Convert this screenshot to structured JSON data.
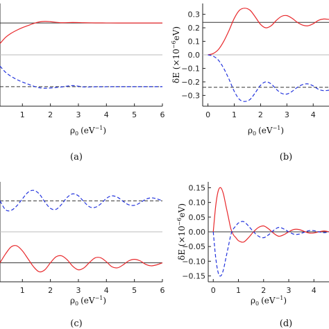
{
  "chart_data": [
    {
      "panel": "a",
      "type": "line",
      "caption": "(a)",
      "xlabel_main": "ρ",
      "xlabel_sub": "0",
      "xlabel_unit": "(eV",
      "xlabel_exp": "−1",
      "xlabel_close": ")",
      "xlim": [
        0.2,
        6.0
      ],
      "xticks": [
        1,
        2,
        3,
        4,
        5,
        6
      ],
      "ylim": [
        -1.0,
        1.0
      ],
      "reference_lines": [
        {
          "y": 0.62,
          "style": "solid",
          "color": "#333333"
        },
        {
          "y": 0.0,
          "style": "solid",
          "color": "#bbbbbb"
        },
        {
          "y": -0.62,
          "style": "dashed",
          "color": "#333333"
        }
      ],
      "series": [
        {
          "style": "solid",
          "color": "#e8282b",
          "x": [
            0.2,
            0.4,
            0.6,
            0.8,
            1.0,
            1.2,
            1.4,
            1.6,
            1.8,
            2.0,
            2.4,
            2.8,
            3.2,
            3.6,
            4.0,
            4.4,
            4.8,
            5.2,
            5.6,
            6.0
          ],
          "y": [
            0.22,
            0.34,
            0.42,
            0.48,
            0.53,
            0.57,
            0.61,
            0.64,
            0.65,
            0.645,
            0.625,
            0.63,
            0.625,
            0.622,
            0.621,
            0.62,
            0.62,
            0.62,
            0.62,
            0.62
          ]
        },
        {
          "style": "dashed",
          "color": "#2233dd",
          "x": [
            0.2,
            0.4,
            0.6,
            0.8,
            1.0,
            1.2,
            1.4,
            1.6,
            1.8,
            2.0,
            2.4,
            2.8,
            3.2,
            3.6,
            4.0,
            4.4,
            4.8,
            5.2,
            5.6,
            6.0
          ],
          "y": [
            -0.22,
            -0.34,
            -0.42,
            -0.48,
            -0.53,
            -0.57,
            -0.61,
            -0.64,
            -0.65,
            -0.645,
            -0.625,
            -0.6,
            -0.625,
            -0.622,
            -0.621,
            -0.62,
            -0.62,
            -0.62,
            -0.62,
            -0.62
          ]
        }
      ]
    },
    {
      "panel": "b",
      "type": "line",
      "caption": "(b)",
      "xlabel_main": "ρ",
      "xlabel_sub": "0",
      "xlabel_unit": "(eV",
      "xlabel_exp": "−1",
      "xlabel_close": ")",
      "ylabel_main": "δE (×10",
      "ylabel_exp": "−6",
      "ylabel_unit": "eV)",
      "xlim": [
        -0.2,
        4.6
      ],
      "xticks": [
        0,
        1,
        2,
        3,
        4
      ],
      "ylim": [
        -0.38,
        0.38
      ],
      "yticks": [
        -0.3,
        -0.2,
        -0.1,
        0.0,
        0.1,
        0.2,
        0.3
      ],
      "yticklabels": [
        "−0.3",
        "−0.2",
        "−0.1",
        "0.0",
        "0.1",
        "0.2",
        "0.3"
      ],
      "reference_lines": [
        {
          "y": 0.24,
          "style": "solid",
          "color": "#333333"
        },
        {
          "y": 0.0,
          "style": "solid",
          "color": "#bbbbbb"
        },
        {
          "y": -0.24,
          "style": "dashed",
          "color": "#333333"
        }
      ],
      "series": [
        {
          "style": "solid",
          "color": "#e8282b",
          "x": [
            0.0,
            0.2,
            0.4,
            0.6,
            0.8,
            1.0,
            1.2,
            1.4,
            1.6,
            1.8,
            2.0,
            2.2,
            2.4,
            2.6,
            2.8,
            3.0,
            3.2,
            3.4,
            3.6,
            3.8,
            4.0,
            4.2,
            4.4,
            4.6
          ],
          "y": [
            0.0,
            0.01,
            0.04,
            0.1,
            0.18,
            0.27,
            0.33,
            0.345,
            0.33,
            0.28,
            0.225,
            0.2,
            0.215,
            0.255,
            0.285,
            0.29,
            0.27,
            0.24,
            0.22,
            0.215,
            0.23,
            0.255,
            0.265,
            0.262
          ]
        },
        {
          "style": "dashed",
          "color": "#2233dd",
          "x": [
            0.0,
            0.2,
            0.4,
            0.6,
            0.8,
            1.0,
            1.2,
            1.4,
            1.6,
            1.8,
            2.0,
            2.2,
            2.4,
            2.6,
            2.8,
            3.0,
            3.2,
            3.4,
            3.6,
            3.8,
            4.0,
            4.2,
            4.4,
            4.6
          ],
          "y": [
            0.0,
            -0.01,
            -0.04,
            -0.1,
            -0.18,
            -0.27,
            -0.33,
            -0.345,
            -0.33,
            -0.28,
            -0.225,
            -0.2,
            -0.215,
            -0.255,
            -0.285,
            -0.29,
            -0.27,
            -0.24,
            -0.22,
            -0.215,
            -0.23,
            -0.255,
            -0.265,
            -0.262
          ]
        }
      ]
    },
    {
      "panel": "c",
      "type": "line",
      "caption": "(c)",
      "xlabel_main": "ρ",
      "xlabel_sub": "0",
      "xlabel_unit": "(eV",
      "xlabel_exp": "−1",
      "xlabel_close": ")",
      "xlim": [
        0.2,
        6.0
      ],
      "xticks": [
        1,
        2,
        3,
        4,
        5,
        6
      ],
      "ylim": [
        -1.0,
        1.0
      ],
      "reference_lines": [
        {
          "y": 0.62,
          "style": "dashed",
          "color": "#333333"
        },
        {
          "y": 0.0,
          "style": "solid",
          "color": "#bbbbbb"
        },
        {
          "y": -0.62,
          "style": "solid",
          "color": "#333333"
        }
      ],
      "series": [
        {
          "style": "dashed",
          "color": "#2233dd",
          "x": [
            0.2,
            0.4,
            0.6,
            0.8,
            1.0,
            1.2,
            1.4,
            1.6,
            1.8,
            2.0,
            2.2,
            2.4,
            2.6,
            2.8,
            3.0,
            3.2,
            3.4,
            3.6,
            3.8,
            4.0,
            4.2,
            4.4,
            4.6,
            4.8,
            5.0,
            5.2,
            5.4,
            5.6,
            5.8,
            6.0
          ],
          "y": [
            0.62,
            0.44,
            0.43,
            0.52,
            0.66,
            0.79,
            0.83,
            0.76,
            0.6,
            0.47,
            0.45,
            0.55,
            0.69,
            0.76,
            0.72,
            0.6,
            0.5,
            0.49,
            0.56,
            0.67,
            0.72,
            0.69,
            0.61,
            0.54,
            0.53,
            0.58,
            0.65,
            0.68,
            0.66,
            0.62
          ]
        },
        {
          "style": "solid",
          "color": "#e8282b",
          "x": [
            0.2,
            0.4,
            0.6,
            0.8,
            1.0,
            1.2,
            1.4,
            1.6,
            1.8,
            2.0,
            2.2,
            2.4,
            2.6,
            2.8,
            3.0,
            3.2,
            3.4,
            3.6,
            3.8,
            4.0,
            4.2,
            4.4,
            4.6,
            4.8,
            5.0,
            5.2,
            5.4,
            5.6,
            5.8,
            6.0
          ],
          "y": [
            -0.62,
            -0.44,
            -0.3,
            -0.28,
            -0.38,
            -0.54,
            -0.7,
            -0.8,
            -0.76,
            -0.62,
            -0.5,
            -0.48,
            -0.56,
            -0.69,
            -0.76,
            -0.72,
            -0.61,
            -0.52,
            -0.52,
            -0.6,
            -0.7,
            -0.72,
            -0.66,
            -0.58,
            -0.55,
            -0.58,
            -0.65,
            -0.68,
            -0.66,
            -0.62
          ]
        }
      ]
    },
    {
      "panel": "d",
      "type": "line",
      "caption": "(d)",
      "xlabel_main": "ρ",
      "xlabel_sub": "0",
      "xlabel_unit": "(eV",
      "xlabel_exp": "−1",
      "xlabel_close": ")",
      "ylabel_main": "δE (×10",
      "ylabel_exp": "−6",
      "ylabel_unit": "eV)",
      "xlim": [
        -0.2,
        4.6
      ],
      "xticks": [
        0,
        1,
        2,
        3,
        4
      ],
      "ylim": [
        -0.17,
        0.17
      ],
      "yticks": [
        -0.15,
        -0.1,
        -0.05,
        0.0,
        0.05,
        0.1,
        0.15
      ],
      "yticklabels": [
        "−0.15",
        "−0.10",
        "−0.05",
        "0.00",
        "0.05",
        "0.10",
        "0.15"
      ],
      "reference_lines": [
        {
          "y": 0.0,
          "style": "solid",
          "color": "#333333"
        }
      ],
      "series": [
        {
          "style": "solid",
          "color": "#e8282b",
          "x": [
            0.0,
            0.1,
            0.2,
            0.3,
            0.4,
            0.5,
            0.6,
            0.7,
            0.8,
            0.9,
            1.0,
            1.2,
            1.4,
            1.6,
            1.8,
            2.0,
            2.2,
            2.4,
            2.6,
            2.8,
            3.0,
            3.2,
            3.4,
            3.6,
            3.8,
            4.0,
            4.2,
            4.4,
            4.6
          ],
          "y": [
            0.0,
            0.09,
            0.14,
            0.15,
            0.13,
            0.09,
            0.05,
            0.01,
            -0.01,
            -0.02,
            -0.03,
            -0.035,
            -0.02,
            0.0,
            0.015,
            0.02,
            0.01,
            -0.005,
            -0.015,
            -0.01,
            0.0,
            0.008,
            0.008,
            0.002,
            -0.004,
            -0.004,
            0.0,
            0.003,
            0.0
          ]
        },
        {
          "style": "dashed",
          "color": "#2233dd",
          "x": [
            0.0,
            0.1,
            0.2,
            0.3,
            0.4,
            0.5,
            0.6,
            0.7,
            0.8,
            0.9,
            1.0,
            1.2,
            1.4,
            1.6,
            1.8,
            2.0,
            2.2,
            2.4,
            2.6,
            2.8,
            3.0,
            3.2,
            3.4,
            3.6,
            3.8,
            4.0,
            4.2,
            4.4,
            4.6
          ],
          "y": [
            0.0,
            -0.09,
            -0.14,
            -0.15,
            -0.13,
            -0.09,
            -0.05,
            -0.01,
            0.01,
            0.02,
            0.03,
            0.035,
            0.02,
            0.0,
            -0.015,
            -0.02,
            -0.01,
            0.005,
            0.015,
            0.01,
            0.0,
            -0.008,
            -0.008,
            -0.002,
            0.004,
            0.004,
            0.0,
            -0.003,
            0.0
          ]
        }
      ]
    }
  ]
}
